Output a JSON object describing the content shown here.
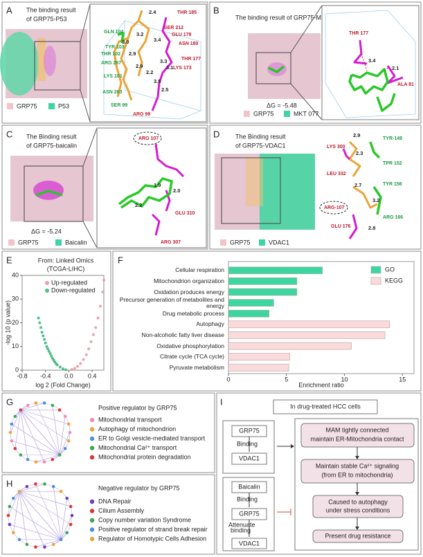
{
  "panels": {
    "A": {
      "label": "A",
      "title": [
        "The binding result",
        "of GRP75-P53"
      ],
      "grp75_residues": [
        "THR 185",
        "SER 212",
        "GLU 179",
        "ASN 180",
        "THR 177",
        "LYS 173",
        "ARG 99"
      ],
      "partner_residues": [
        "GLN 104",
        "TYR 103",
        "THR 102",
        "ARG 267",
        "LYS 101",
        "ASN 263",
        "SER 99"
      ],
      "distances": [
        "2.4",
        "3.2",
        "3.4",
        "3.0",
        "2.9",
        "2.9",
        "3.3",
        "3.1",
        "2.2",
        "3.5",
        "2.5"
      ],
      "legend": [
        "GRP75",
        "P53"
      ]
    },
    "B": {
      "label": "B",
      "title": [
        "The binding result of GRP75-MKT 077"
      ],
      "grp75_residues": [
        "THR 177",
        "ALA 81"
      ],
      "distances": [
        "3.4",
        "2.1"
      ],
      "delta_g": "ΔG = -5.48",
      "legend": [
        "GRP75",
        "MKT 077"
      ]
    },
    "C": {
      "label": "C",
      "title": [
        "The Binding result",
        "of GRP75-baicalin"
      ],
      "grp75_residues": [
        "ARG 107",
        "GLU 310",
        "ARG 307"
      ],
      "distances": [
        "1.9",
        "2.0",
        "2.2"
      ],
      "delta_g": "ΔG = -5.24",
      "legend": [
        "GRP75",
        "Baicalin"
      ]
    },
    "D": {
      "label": "D",
      "title": [
        "The Binding result",
        "of GRP75-VDAC1"
      ],
      "grp75_residues": [
        "LYS 300",
        "LEU 332",
        "ARG-107",
        "GLU 176"
      ],
      "partner_residues": [
        "TYR-149",
        "TPR 152",
        "TYR 156",
        "ARG 166"
      ],
      "distances": [
        "2.9",
        "2.3",
        "2.7",
        "3.2",
        "2.8"
      ],
      "legend": [
        "GRP75",
        "VDAC1"
      ]
    },
    "E": {
      "label": "E",
      "source": [
        "From: Linked Omics",
        "(TCGA-LIHC)"
      ]
    },
    "F": {
      "label": "F"
    },
    "G": {
      "label": "G",
      "title": "Positive regulator by GRP75",
      "items": [
        {
          "text": "Mitochondrial transport",
          "color": "#f28bb4"
        },
        {
          "text": "Autophagy of mitochondrion",
          "color": "#f0a23a"
        },
        {
          "text": "ER to Golgi vesicle-mediated transport",
          "color": "#4d8fd6"
        },
        {
          "text": "Mitochondrial Ca²⁺ transport",
          "color": "#3aa84a"
        },
        {
          "text": "Mitochondrial protein degradation",
          "color": "#d93636"
        }
      ]
    },
    "H": {
      "label": "H",
      "title": "Negative  regulator by GRP75",
      "items": [
        {
          "text": "DNA Repair",
          "color": "#6a3fb8"
        },
        {
          "text": "Cilium Assembly",
          "color": "#d93636"
        },
        {
          "text": "Copy number variation Syndrome",
          "color": "#3aa84a"
        },
        {
          "text": "Positive regulator of strand break repair",
          "color": "#4d8fd6"
        },
        {
          "text": "Regulator of Homotypic Cells Adhesion",
          "color": "#f0a23a"
        }
      ]
    },
    "I": {
      "label": "I",
      "header": "In drug-treated HCC cells",
      "pathway1": [
        "GRP75",
        "Binding",
        "VDAC1"
      ],
      "pathway2": [
        "Baicalin",
        "Binding",
        "GRP75",
        [
          "Attenuate",
          "binding"
        ],
        "VDAC1"
      ],
      "steps": [
        [
          "MAM tightly connected",
          "maintain ER-Mitochondria contact"
        ],
        [
          "Maintain stable Ca²⁺ signaling",
          "(from ER to mitochondria)"
        ],
        [
          "Caused to autophagy",
          "under stress conditions"
        ],
        [
          "Present drug resistance"
        ]
      ]
    }
  },
  "chart_data": [
    {
      "type": "scatter",
      "xlabel": "log 2 (Fold Change)",
      "ylabel": "-log 10 (p value)",
      "xlim": [
        -0.8,
        0.6
      ],
      "xticks": [
        -0.8,
        -0.4,
        {
          "value": 0,
          "label": "0.0"
        },
        0.4
      ],
      "ylim": [
        0,
        40
      ],
      "yticks": [
        0,
        10,
        20,
        30,
        40
      ],
      "legend": "upper left",
      "series": [
        {
          "name": "Up-regulated",
          "color": "#e8a3ab",
          "x": [
            0.05,
            0.1,
            0.15,
            0.2,
            0.25,
            0.3,
            0.34,
            0.38,
            0.42,
            0.46,
            0.5,
            0.54,
            0.58,
            0.6
          ],
          "values": [
            0.3,
            0.8,
            1.6,
            2.8,
            4.5,
            6.5,
            9,
            12,
            15,
            18,
            22,
            27,
            33,
            38
          ]
        },
        {
          "name": "Down-regulated",
          "color": "#4fbf86",
          "x": [
            -0.52,
            -0.5,
            -0.48,
            -0.46,
            -0.44,
            -0.42,
            -0.4,
            -0.38,
            -0.36,
            -0.34,
            -0.32,
            -0.3,
            -0.28,
            -0.26,
            -0.24,
            -0.22,
            -0.2,
            -0.15,
            -0.1,
            -0.05
          ],
          "values": [
            22,
            20,
            18,
            16,
            14.5,
            13,
            11.5,
            10,
            9,
            8,
            7,
            6,
            5,
            4.2,
            3.5,
            2.8,
            2.2,
            1.3,
            0.6,
            0.2
          ]
        }
      ]
    },
    {
      "type": "barh",
      "xlabel": "Enrichment ratio",
      "categories": [
        "Cellular respiration",
        "Mitochondrion organization",
        "Oxidation produces energy",
        "Precursor generation of metabolites and energy",
        "Drug metabolic process",
        "Autophagy",
        "Non-alcoholic fatty liver disease",
        "Oxidative phosphorylation",
        "Citrate cycle (TCA cycle)",
        "Pyruvate metabolism"
      ],
      "xlim": [
        0,
        16
      ],
      "xticks": [
        0,
        5,
        10,
        15
      ],
      "legend": "upper right",
      "series": [
        {
          "name": "GO",
          "color": "#3dd6a0",
          "values": [
            8.1,
            5.9,
            5.9,
            3.9,
            3.5,
            null,
            null,
            null,
            null,
            null
          ]
        },
        {
          "name": "KEGG",
          "color": "#fbdadc",
          "values": [
            null,
            null,
            null,
            null,
            null,
            13.9,
            13.5,
            10.6,
            5.3,
            5.2
          ]
        }
      ]
    }
  ]
}
